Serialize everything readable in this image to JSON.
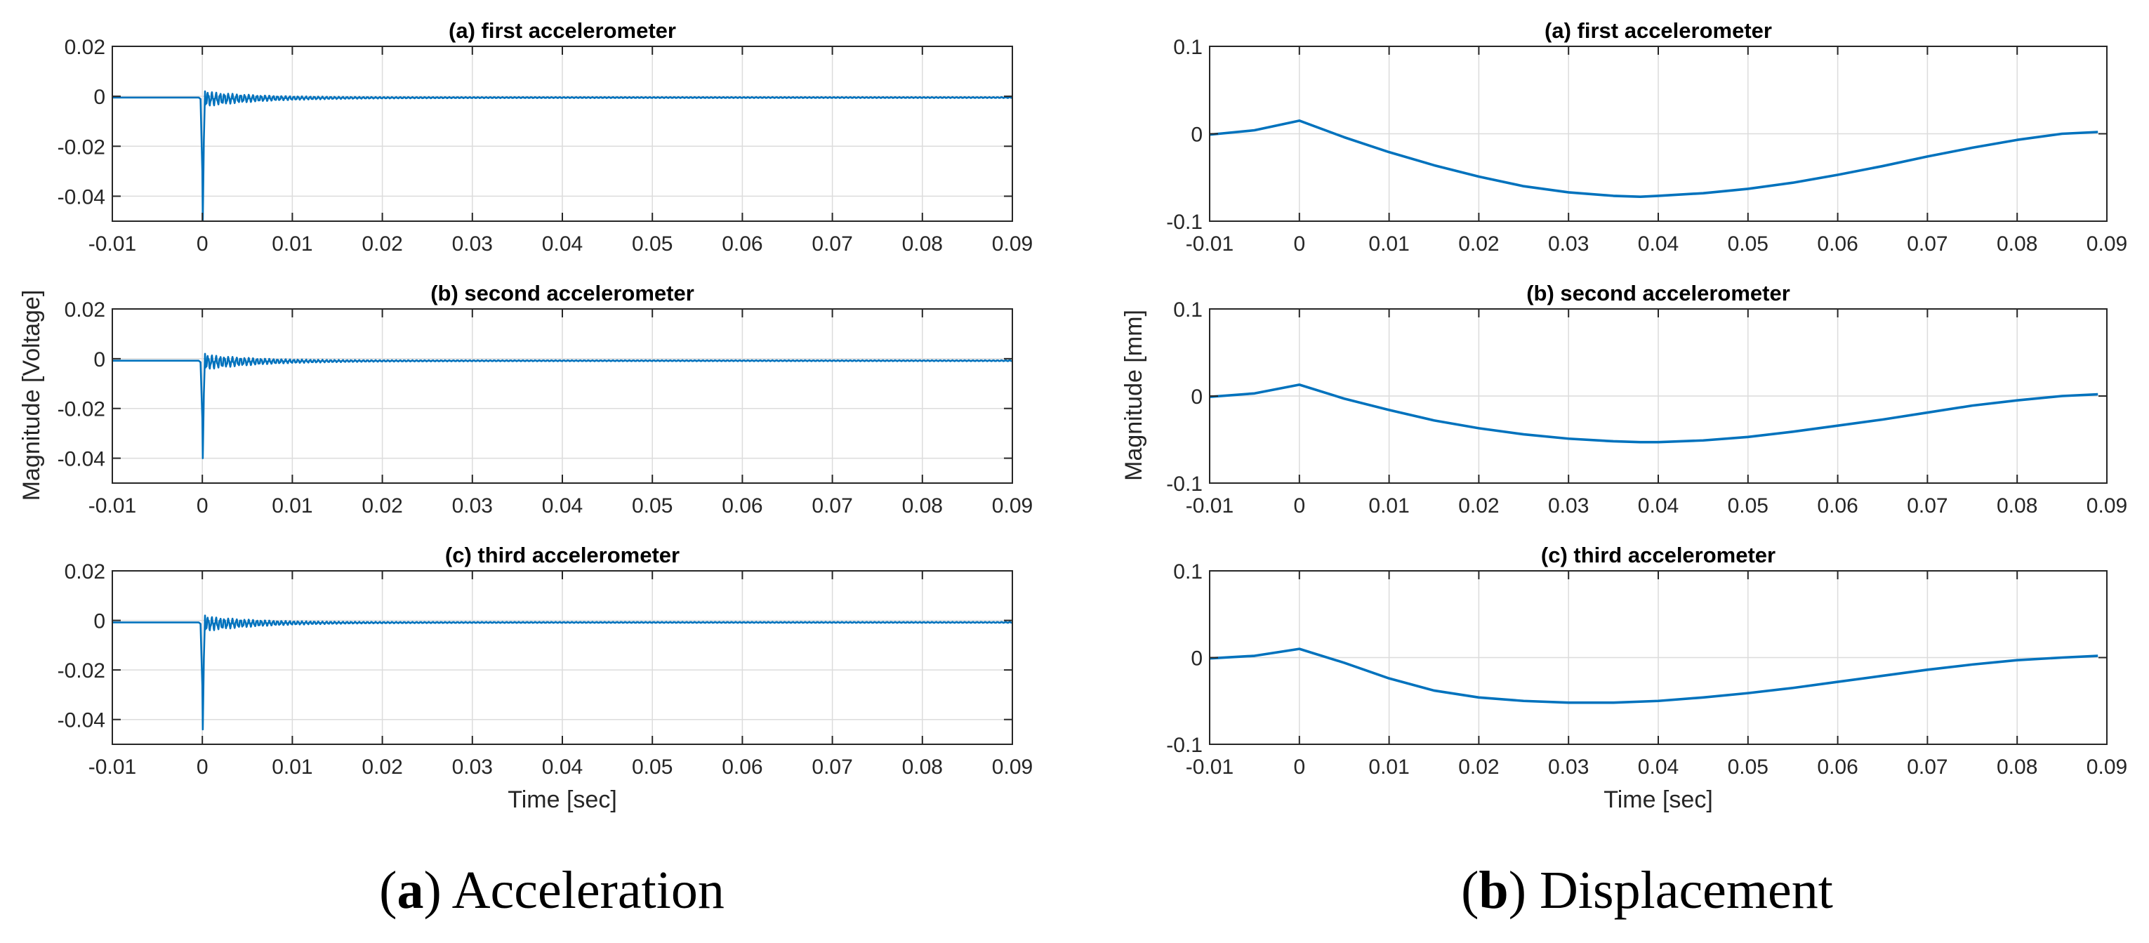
{
  "chart_data": [
    {
      "type": "line",
      "caption_letter": "a",
      "caption_text": "Acceleration",
      "ylabel": "Magnitude [Voltage]",
      "xlabel": "Time [sec]",
      "xlim": [
        -0.01,
        0.09
      ],
      "xticks": [
        -0.01,
        0,
        0.01,
        0.02,
        0.03,
        0.04,
        0.05,
        0.06,
        0.07,
        0.08,
        0.09
      ],
      "xtick_labels": [
        "-0.01",
        "0",
        "0.01",
        "0.02",
        "0.03",
        "0.04",
        "0.05",
        "0.06",
        "0.07",
        "0.08",
        "0.09"
      ],
      "grid": true,
      "line_color": "#0072BD",
      "subplots": [
        {
          "title": "(a) first accelerometer",
          "ylim": [
            -0.05,
            0.02
          ],
          "yticks": [
            -0.04,
            -0.02,
            0,
            0.02
          ],
          "ytick_labels": [
            "-0.04",
            "-0.02",
            "0",
            "0.02"
          ],
          "signal": {
            "kind": "impulse",
            "baseline": -0.0005,
            "peak_time": 5e-05,
            "peak": -0.05,
            "ring_amplitude": 0.003,
            "ring_decay_tau": 0.006,
            "ring_frequency_hz": 2200
          }
        },
        {
          "title": "(b) second accelerometer",
          "ylim": [
            -0.05,
            0.02
          ],
          "yticks": [
            -0.04,
            -0.02,
            0,
            0.02
          ],
          "ytick_labels": [
            "-0.04",
            "-0.02",
            "0",
            "0.02"
          ],
          "signal": {
            "kind": "impulse",
            "baseline": -0.0008,
            "peak_time": 5e-05,
            "peak": -0.04,
            "ring_amplitude": 0.003,
            "ring_decay_tau": 0.006,
            "ring_frequency_hz": 2200
          }
        },
        {
          "title": "(c) third accelerometer",
          "ylim": [
            -0.05,
            0.02
          ],
          "yticks": [
            -0.04,
            -0.02,
            0,
            0.02
          ],
          "ytick_labels": [
            "-0.04",
            "-0.02",
            "0",
            "0.02"
          ],
          "signal": {
            "kind": "impulse",
            "baseline": -0.0008,
            "peak_time": 5e-05,
            "peak": -0.044,
            "ring_amplitude": 0.003,
            "ring_decay_tau": 0.006,
            "ring_frequency_hz": 2200
          }
        }
      ]
    },
    {
      "type": "line",
      "caption_letter": "b",
      "caption_text": "Displacement",
      "ylabel": "Magnitude [mm]",
      "xlabel": "Time [sec]",
      "xlim": [
        -0.01,
        0.09
      ],
      "xticks": [
        -0.01,
        0,
        0.01,
        0.02,
        0.03,
        0.04,
        0.05,
        0.06,
        0.07,
        0.08,
        0.09
      ],
      "xtick_labels": [
        "-0.01",
        "0",
        "0.01",
        "0.02",
        "0.03",
        "0.04",
        "0.05",
        "0.06",
        "0.07",
        "0.08",
        "0.09"
      ],
      "grid": true,
      "line_color": "#0072BD",
      "subplots": [
        {
          "title": "(a) first accelerometer",
          "ylim": [
            -0.1,
            0.1
          ],
          "yticks": [
            -0.1,
            0,
            0.1
          ],
          "ytick_labels": [
            "-0.1",
            "0",
            "0.1"
          ],
          "signal": {
            "kind": "points",
            "x": [
              -0.01,
              -0.005,
              0,
              0.005,
              0.01,
              0.015,
              0.02,
              0.025,
              0.03,
              0.035,
              0.038,
              0.04,
              0.045,
              0.05,
              0.055,
              0.06,
              0.065,
              0.07,
              0.075,
              0.08,
              0.085,
              0.089
            ],
            "y": [
              -0.001,
              0.004,
              0.015,
              -0.004,
              -0.021,
              -0.036,
              -0.049,
              -0.06,
              -0.067,
              -0.071,
              -0.072,
              -0.071,
              -0.068,
              -0.063,
              -0.056,
              -0.047,
              -0.037,
              -0.026,
              -0.016,
              -0.007,
              0.0,
              0.002
            ]
          }
        },
        {
          "title": "(b) second accelerometer",
          "ylim": [
            -0.1,
            0.1
          ],
          "yticks": [
            -0.1,
            0,
            0.1
          ],
          "ytick_labels": [
            "-0.1",
            "0",
            "0.1"
          ],
          "signal": {
            "kind": "points",
            "x": [
              -0.01,
              -0.005,
              0,
              0.005,
              0.01,
              0.015,
              0.02,
              0.025,
              0.03,
              0.035,
              0.038,
              0.04,
              0.045,
              0.05,
              0.055,
              0.06,
              0.065,
              0.07,
              0.075,
              0.08,
              0.085,
              0.089
            ],
            "y": [
              -0.001,
              0.003,
              0.013,
              -0.003,
              -0.016,
              -0.028,
              -0.037,
              -0.044,
              -0.049,
              -0.052,
              -0.053,
              -0.053,
              -0.051,
              -0.047,
              -0.041,
              -0.034,
              -0.027,
              -0.019,
              -0.011,
              -0.005,
              0.0,
              0.002
            ]
          }
        },
        {
          "title": "(c) third accelerometer",
          "ylim": [
            -0.1,
            0.1
          ],
          "yticks": [
            -0.1,
            0,
            0.1
          ],
          "ytick_labels": [
            "-0.1",
            "0",
            "0.1"
          ],
          "signal": {
            "kind": "points",
            "x": [
              -0.01,
              -0.005,
              0,
              0.005,
              0.01,
              0.015,
              0.02,
              0.025,
              0.03,
              0.032,
              0.035,
              0.04,
              0.045,
              0.05,
              0.055,
              0.06,
              0.065,
              0.07,
              0.075,
              0.08,
              0.085,
              0.089
            ],
            "y": [
              -0.001,
              0.002,
              0.01,
              -0.006,
              -0.024,
              -0.038,
              -0.046,
              -0.05,
              -0.052,
              -0.052,
              -0.052,
              -0.05,
              -0.046,
              -0.041,
              -0.035,
              -0.028,
              -0.021,
              -0.014,
              -0.008,
              -0.003,
              0.0,
              0.002
            ]
          }
        }
      ]
    }
  ]
}
